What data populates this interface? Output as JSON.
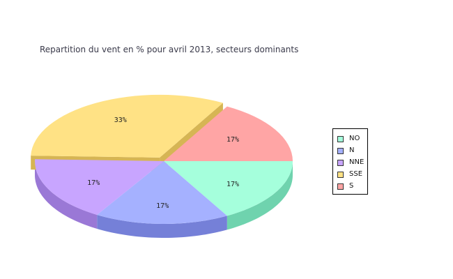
{
  "chart_data": {
    "type": "pie",
    "title": "Repartition du vent en % pour avril 2013, secteurs dominants",
    "slices": [
      {
        "name": "NO",
        "value": 17,
        "label": "17%",
        "color": "#a5ffdc",
        "side_color": "#6fd3ae"
      },
      {
        "name": "N",
        "value": 17,
        "label": "17%",
        "color": "#a5b1ff",
        "side_color": "#7580d8"
      },
      {
        "name": "NNE",
        "value": 17,
        "label": "17%",
        "color": "#c8a5ff",
        "side_color": "#9a78d6"
      },
      {
        "name": "SSE",
        "value": 33,
        "label": "33%",
        "color": "#ffe285",
        "side_color": "#d6b554",
        "exploded": true
      },
      {
        "name": "S",
        "value": 17,
        "label": "17%",
        "color": "#ffa5a5",
        "side_color": "#d47a7a"
      }
    ],
    "legend_position": "right",
    "three_d": true
  }
}
